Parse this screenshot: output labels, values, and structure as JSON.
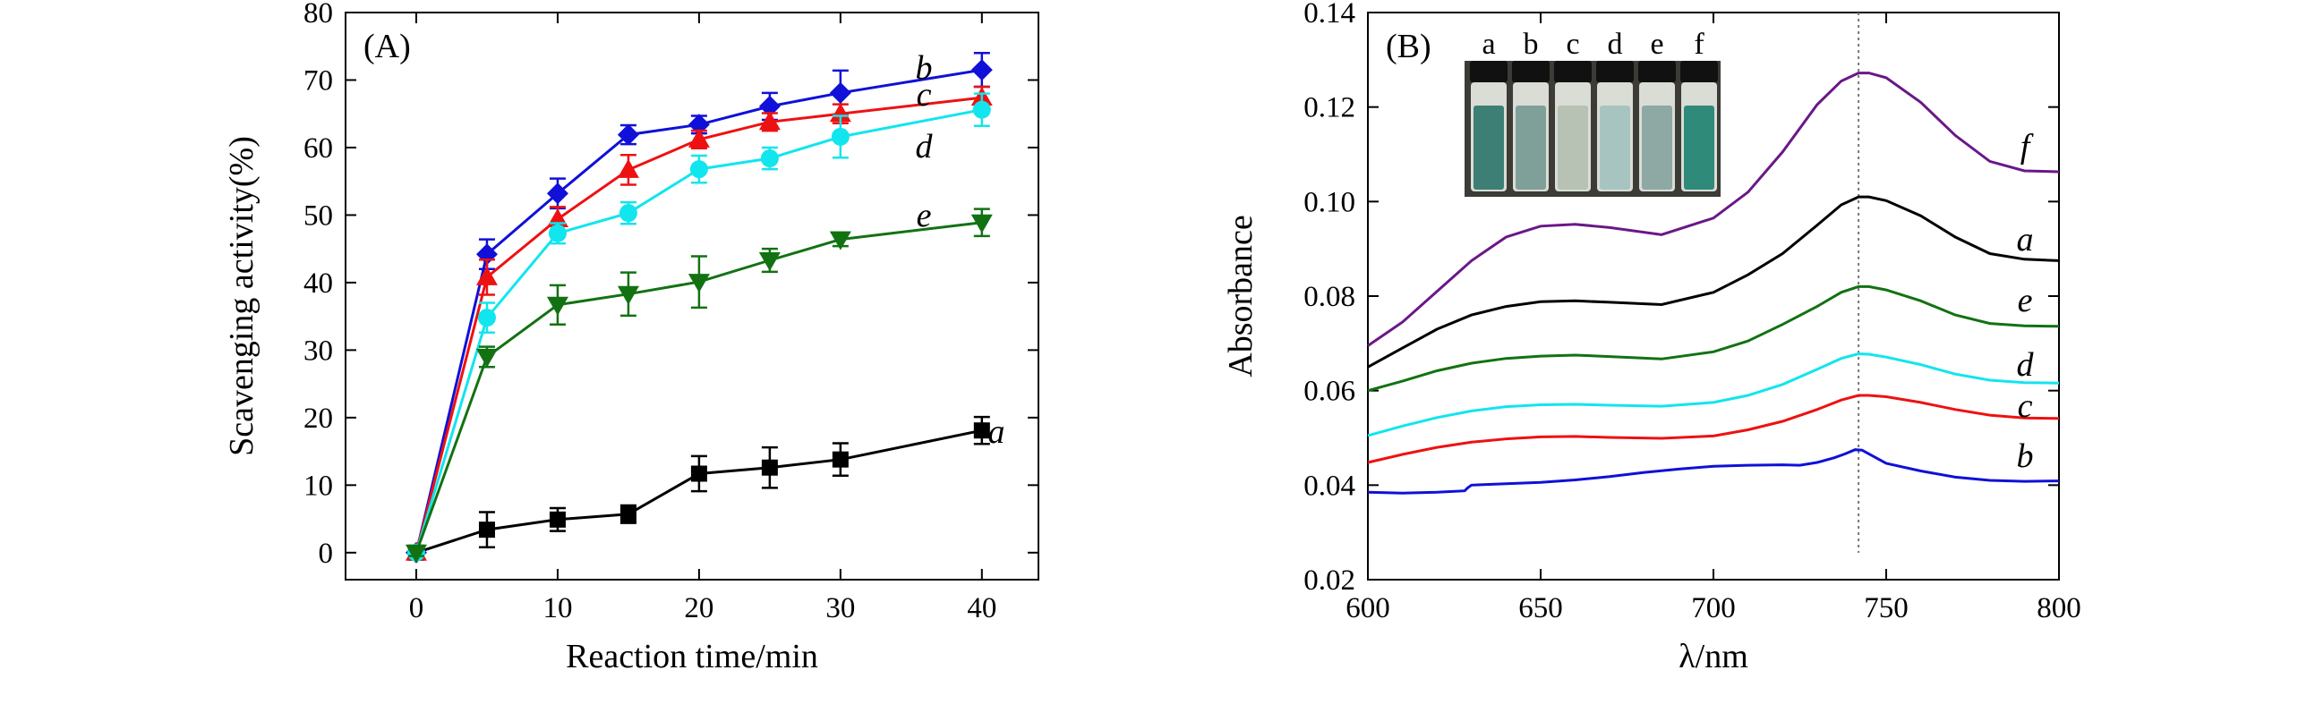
{
  "chart_data": [
    {
      "type": "line",
      "panel_label": "(A)",
      "xlabel": "Reaction time/min",
      "ylabel": "Scavenging activity(%)",
      "xlim": [
        -5,
        44
      ],
      "ylim": [
        -4,
        80
      ],
      "xticks": [
        0,
        10,
        20,
        30,
        40
      ],
      "yticks": [
        0,
        10,
        20,
        30,
        40,
        50,
        60,
        70,
        80
      ],
      "grid": false,
      "legend": "none (curves labelled at right end)",
      "series": [
        {
          "name": "a",
          "color": "#000000",
          "marker": "square",
          "x": [
            0,
            5,
            10,
            15,
            20,
            25,
            30,
            40
          ],
          "y": [
            0,
            3.4,
            4.9,
            5.7,
            11.7,
            12.6,
            13.8,
            18.1
          ],
          "err": [
            0.5,
            2.6,
            1.7,
            1.3,
            2.6,
            3.0,
            2.4,
            2.0
          ]
        },
        {
          "name": "b",
          "color": "#1010d8",
          "marker": "diamond",
          "x": [
            0,
            5,
            10,
            15,
            20,
            25,
            30,
            40
          ],
          "y": [
            0,
            44.2,
            53.2,
            61.9,
            63.4,
            66.1,
            68.1,
            71.5
          ],
          "err": [
            0.5,
            2.2,
            2.2,
            1.4,
            1.3,
            2.0,
            3.3,
            2.5
          ]
        },
        {
          "name": "c",
          "color": "#ee1111",
          "marker": "triangle-up",
          "x": [
            0,
            5,
            10,
            15,
            20,
            25,
            30,
            40
          ],
          "y": [
            0,
            40.8,
            49.4,
            56.7,
            61.2,
            63.8,
            65.0,
            67.4
          ],
          "err": [
            0.5,
            2.6,
            1.8,
            2.2,
            1.3,
            1.3,
            1.4,
            1.6
          ]
        },
        {
          "name": "d",
          "color": "#11e5ee",
          "marker": "circle",
          "x": [
            0,
            5,
            10,
            15,
            20,
            25,
            30,
            40
          ],
          "y": [
            0,
            34.8,
            47.3,
            50.3,
            56.8,
            58.4,
            61.6,
            65.6
          ],
          "err": [
            0.5,
            2.2,
            1.5,
            1.6,
            2.0,
            1.6,
            3.1,
            2.4
          ]
        },
        {
          "name": "e",
          "color": "#127212",
          "marker": "triangle-down",
          "x": [
            0,
            5,
            10,
            15,
            20,
            25,
            30,
            40
          ],
          "y": [
            0,
            29.0,
            36.7,
            38.3,
            40.1,
            43.3,
            46.4,
            48.9
          ],
          "err": [
            0.5,
            1.5,
            2.9,
            3.2,
            3.8,
            1.7,
            1.0,
            2.0
          ]
        }
      ]
    },
    {
      "type": "line",
      "panel_label": "(B)",
      "xlabel": "λ/nm",
      "ylabel": "Absorbance",
      "xlim": [
        600,
        800
      ],
      "ylim": [
        0.02,
        0.14
      ],
      "xticks": [
        600,
        650,
        700,
        750,
        800
      ],
      "yticks": [
        0.02,
        0.04,
        0.06,
        0.08,
        0.1,
        0.12,
        0.14
      ],
      "grid": false,
      "reference_line_x": 742,
      "legend": "none (curves labelled at right end)",
      "inset_vials": [
        "a",
        "b",
        "c",
        "d",
        "e",
        "f"
      ],
      "series": [
        {
          "name": "f",
          "color": "#6a1788",
          "x": [
            600,
            610,
            620,
            630,
            640,
            650,
            660,
            670,
            685,
            700,
            710,
            720,
            730,
            737,
            742,
            745,
            750,
            760,
            770,
            780,
            790,
            800
          ],
          "y": [
            0.0695,
            0.0745,
            0.081,
            0.0875,
            0.0925,
            0.0948,
            0.0952,
            0.0945,
            0.093,
            0.0965,
            0.102,
            0.1105,
            0.1205,
            0.1255,
            0.1272,
            0.1272,
            0.1262,
            0.121,
            0.114,
            0.1085,
            0.1065,
            0.1063
          ]
        },
        {
          "name": "a",
          "color": "#000000",
          "x": [
            600,
            610,
            620,
            630,
            640,
            650,
            660,
            670,
            685,
            700,
            710,
            720,
            730,
            737,
            742,
            745,
            750,
            760,
            770,
            780,
            790,
            800
          ],
          "y": [
            0.065,
            0.069,
            0.073,
            0.076,
            0.0778,
            0.0788,
            0.079,
            0.0787,
            0.0782,
            0.0808,
            0.0845,
            0.089,
            0.095,
            0.0993,
            0.101,
            0.101,
            0.1002,
            0.097,
            0.0925,
            0.089,
            0.0878,
            0.0875
          ]
        },
        {
          "name": "e",
          "color": "#127212",
          "x": [
            600,
            610,
            620,
            630,
            640,
            650,
            660,
            670,
            685,
            700,
            710,
            720,
            730,
            737,
            742,
            745,
            750,
            760,
            770,
            780,
            790,
            800
          ],
          "y": [
            0.06,
            0.062,
            0.0642,
            0.0658,
            0.0668,
            0.0673,
            0.0675,
            0.0672,
            0.0667,
            0.0682,
            0.0705,
            0.074,
            0.0778,
            0.0808,
            0.082,
            0.082,
            0.0813,
            0.079,
            0.076,
            0.0742,
            0.0737,
            0.0736
          ]
        },
        {
          "name": "d",
          "color": "#11e5ee",
          "x": [
            600,
            610,
            620,
            630,
            640,
            650,
            660,
            670,
            685,
            700,
            710,
            720,
            730,
            737,
            742,
            745,
            750,
            760,
            770,
            780,
            790,
            800
          ],
          "y": [
            0.0505,
            0.0525,
            0.0543,
            0.0557,
            0.0566,
            0.057,
            0.0571,
            0.0569,
            0.0567,
            0.0575,
            0.059,
            0.0613,
            0.0645,
            0.0668,
            0.0678,
            0.0677,
            0.0671,
            0.0655,
            0.0635,
            0.0622,
            0.0617,
            0.0616
          ]
        },
        {
          "name": "c",
          "color": "#ee1111",
          "x": [
            600,
            610,
            620,
            630,
            640,
            650,
            660,
            670,
            685,
            700,
            710,
            720,
            730,
            737,
            742,
            745,
            750,
            760,
            770,
            780,
            790,
            800
          ],
          "y": [
            0.0448,
            0.0465,
            0.048,
            0.0491,
            0.0498,
            0.0502,
            0.0503,
            0.0501,
            0.0499,
            0.0504,
            0.0517,
            0.0535,
            0.056,
            0.058,
            0.059,
            0.059,
            0.0587,
            0.0575,
            0.056,
            0.0548,
            0.0542,
            0.0541
          ]
        },
        {
          "name": "b",
          "color": "#1010d8",
          "x": [
            600,
            610,
            620,
            628,
            629,
            630,
            640,
            650,
            660,
            670,
            680,
            690,
            700,
            710,
            720,
            725,
            730,
            735,
            738,
            741,
            743,
            746,
            750,
            760,
            770,
            780,
            790,
            800
          ],
          "y": [
            0.0385,
            0.0383,
            0.0385,
            0.0388,
            0.0395,
            0.04,
            0.0403,
            0.0406,
            0.0411,
            0.0418,
            0.0427,
            0.0434,
            0.044,
            0.0442,
            0.0443,
            0.0442,
            0.0448,
            0.0458,
            0.0466,
            0.0475,
            0.0474,
            0.0462,
            0.0446,
            0.043,
            0.0417,
            0.041,
            0.0408,
            0.0409
          ]
        }
      ]
    }
  ]
}
